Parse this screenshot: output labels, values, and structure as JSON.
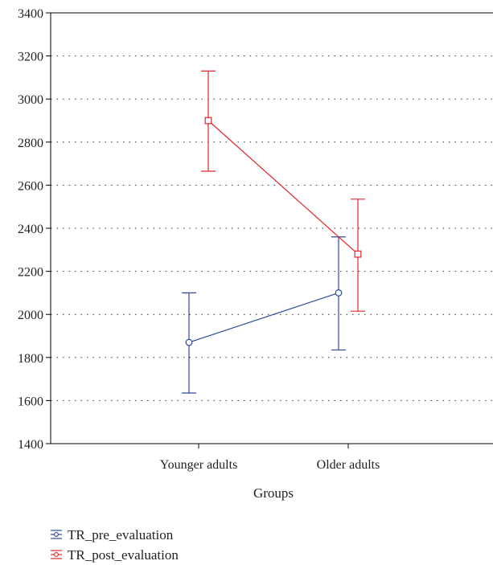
{
  "chart_data": {
    "type": "line",
    "xlabel": "Groups",
    "ylabel": "",
    "categories": [
      "Younger adults",
      "Older adults"
    ],
    "ylim": [
      1400,
      3400
    ],
    "yticks": [
      1400,
      1600,
      1800,
      2000,
      2200,
      2400,
      2600,
      2800,
      3000,
      3200,
      3400
    ],
    "grid": "horizontal dotted",
    "legend_position": "bottom-left",
    "series": [
      {
        "name": "TR_pre_evaluation",
        "color": "#2b4a9a",
        "marker": "circle",
        "values": [
          1870,
          2100
        ],
        "error_low": [
          1635,
          1835
        ],
        "error_high": [
          2100,
          2360
        ]
      },
      {
        "name": "TR_post_evaluation",
        "color": "#e0262b",
        "marker": "square",
        "values": [
          2900,
          2280
        ],
        "error_low": [
          2665,
          2015
        ],
        "error_high": [
          3130,
          2535
        ]
      }
    ]
  }
}
